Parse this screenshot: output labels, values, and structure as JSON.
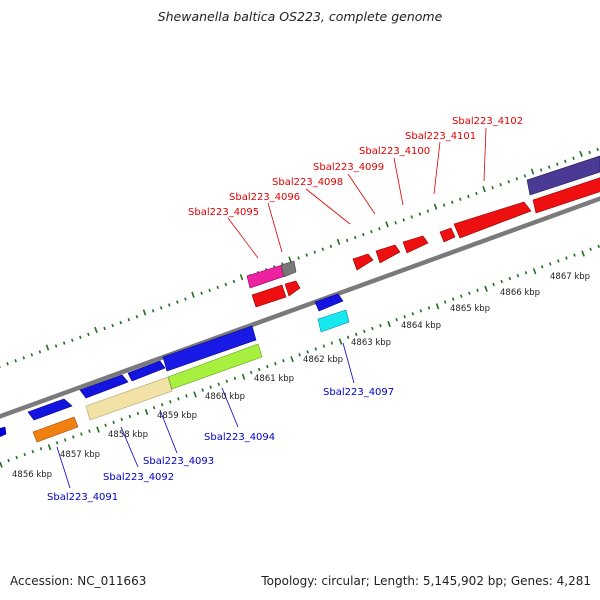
{
  "title": "Shewanella baltica OS223, complete genome",
  "footer": {
    "accession": "Accession: NC_011663",
    "summary": "Topology: circular; Length: 5,145,902 bp; Genes: 4,281"
  },
  "colors": {
    "backbone": "#808080",
    "tick": "#207020",
    "label_forward": "#e00000",
    "label_reverse": "#0000c8"
  },
  "kbp_labels": [
    "4856 kbp",
    "4857 kbp",
    "4858 kbp",
    "4859 kbp",
    "4860 kbp",
    "4861 kbp",
    "4862 kbp",
    "4863 kbp",
    "4864 kbp",
    "4865 kbp",
    "4866 kbp",
    "4867 kbp"
  ],
  "gene_labels_forward": [
    "Sbal223_4095",
    "Sbal223_4096",
    "Sbal223_4098",
    "Sbal223_4099",
    "Sbal223_4100",
    "Sbal223_4101",
    "Sbal223_4102"
  ],
  "gene_labels_reverse": [
    "Sbal223_4091",
    "Sbal223_4092",
    "Sbal223_4093",
    "Sbal223_4094",
    "Sbal223_4097"
  ]
}
